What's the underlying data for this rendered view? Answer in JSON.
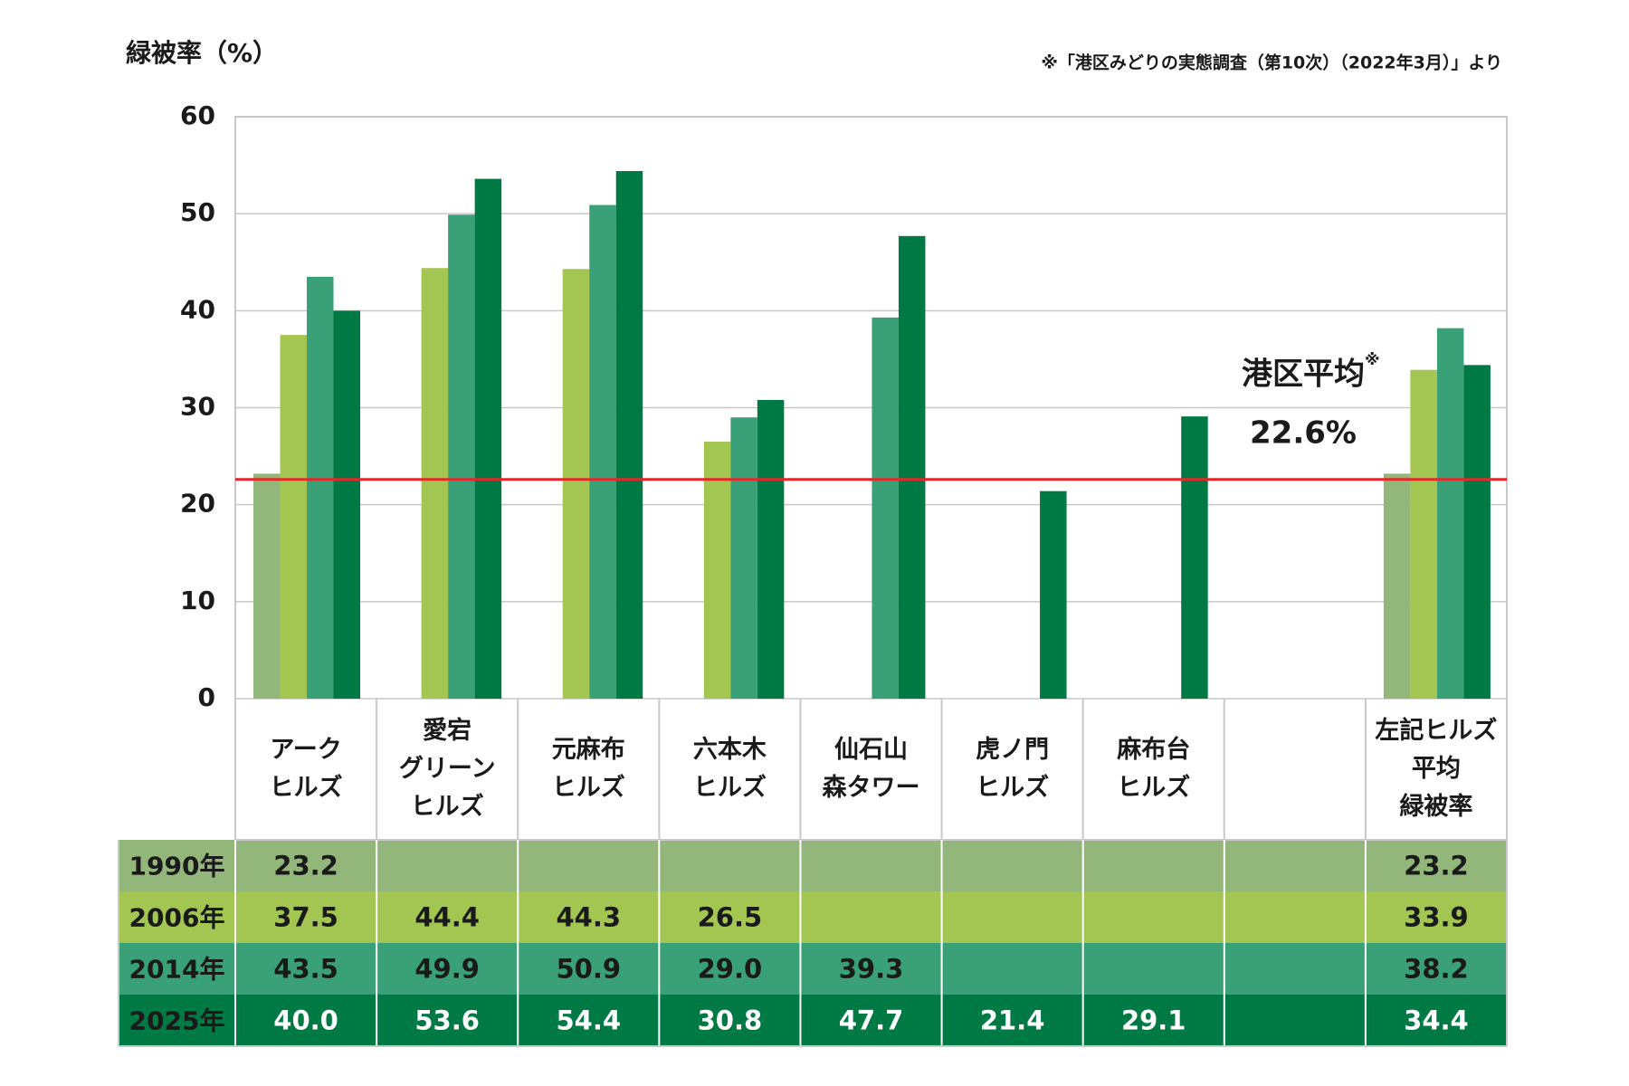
{
  "chart_data": {
    "type": "bar",
    "title": "緑被率（%）",
    "note": "※「港区みどりの実態調査（第10次）（2022年3月）」より",
    "categories": [
      "アーク\nヒルズ",
      "愛宕\nグリーン\nヒルズ",
      "元麻布\nヒルズ",
      "六本木\nヒルズ",
      "仙石山\n森タワー",
      "虎ノ門\nヒルズ",
      "麻布台\nヒルズ",
      null,
      "左記ヒルズ\n平均\n緑被率"
    ],
    "series": [
      {
        "name": "1990年",
        "color": "#93b77a",
        "text_color": "#1a1a1a",
        "values": [
          23.2,
          null,
          null,
          null,
          null,
          null,
          null,
          null,
          23.2
        ],
        "value_labels": [
          "23.2",
          null,
          null,
          null,
          null,
          null,
          null,
          null,
          "23.2"
        ]
      },
      {
        "name": "2006年",
        "color": "#a3c552",
        "text_color": "#1a1a1a",
        "values": [
          37.5,
          44.4,
          44.3,
          26.5,
          null,
          null,
          null,
          null,
          33.9
        ],
        "value_labels": [
          "37.5",
          "44.4",
          "44.3",
          "26.5",
          null,
          null,
          null,
          null,
          "33.9"
        ]
      },
      {
        "name": "2014年",
        "color": "#3aa078",
        "text_color": "#1a1a1a",
        "values": [
          43.5,
          49.9,
          50.9,
          29.0,
          39.3,
          null,
          null,
          null,
          38.2
        ],
        "value_labels": [
          "43.5",
          "49.9",
          "50.9",
          "29.0",
          "39.3",
          null,
          null,
          null,
          "38.2"
        ]
      },
      {
        "name": "2025年",
        "color": "#007a45",
        "text_color": "#ffffff",
        "values": [
          40.0,
          53.6,
          54.4,
          30.8,
          47.7,
          21.4,
          29.1,
          null,
          34.4
        ],
        "value_labels": [
          "40.0",
          "53.6",
          "54.4",
          "30.8",
          "47.7",
          "21.4",
          "29.1",
          null,
          "34.4"
        ]
      }
    ],
    "reference_line": {
      "label": "港区平均",
      "mark": "※",
      "value": 22.6,
      "value_label": "22.6%",
      "color": "#e8262a"
    },
    "ylim": [
      0,
      60
    ],
    "yticks": [
      0,
      10,
      20,
      30,
      40,
      50,
      60
    ],
    "grid": true
  }
}
